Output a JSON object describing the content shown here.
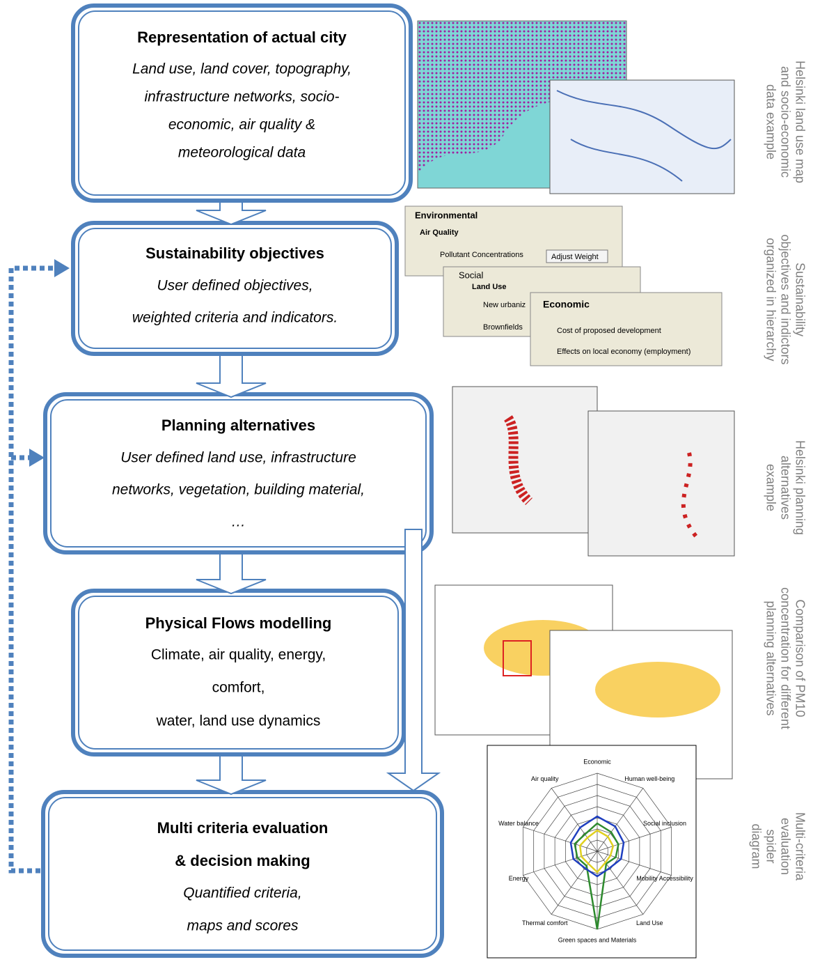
{
  "boxes": [
    {
      "title": [
        "Representation of actual city"
      ],
      "lines": [
        "Land use, land cover, topography,",
        "infrastructure networks, socio-",
        "economic, air quality &",
        "meteorological data"
      ]
    },
    {
      "title": [
        "Sustainability objectives"
      ],
      "lines": [
        "User defined objectives,",
        "weighted criteria and indicators."
      ]
    },
    {
      "title": [
        "Planning alternatives"
      ],
      "lines": [
        "User defined land use, infrastructure",
        "networks, vegetation, building material,",
        "…"
      ]
    },
    {
      "title": [
        "Physical Flows modelling"
      ],
      "lines": [
        "Climate, air quality, energy,",
        "comfort,",
        "water, land use dynamics"
      ]
    },
    {
      "title": [
        "Multi criteria evaluation",
        "& decision making"
      ],
      "lines": [
        "Quantified criteria,",
        "maps and scores"
      ]
    }
  ],
  "captions": [
    [
      "Helsinki land use map",
      "and socio-economic",
      "data example"
    ],
    [
      "Sustainability",
      "objectives and indictors",
      "organized in hierarchy"
    ],
    [
      "Helsinki planning",
      "alternatives",
      "example"
    ],
    [
      "Comparison of PM10",
      "concentration for different",
      "planning alternatives"
    ],
    [
      "Multi-criteria",
      "evaluation",
      "spider",
      "diagram"
    ]
  ],
  "objectives_panel": {
    "environmental": "Environmental",
    "air_quality": "Air Quality",
    "pollutant": "Pollutant Concentrations",
    "adjust": "Adjust Weight",
    "social": "Social",
    "land_use": "Land Use",
    "new_urban": "New urbaniz",
    "brownfields": "Brownfields",
    "economic": "Economic",
    "cost": "Cost of proposed development",
    "effects": "Effects on local economy (employment)"
  },
  "spider_labels": [
    "Economic",
    "Human well-being",
    "Social inclusion",
    "Mobility Accessibility",
    "Land Use",
    "Green spaces and Materials",
    "Thermal comfort",
    "Energy",
    "Water balance",
    "Air quality"
  ]
}
